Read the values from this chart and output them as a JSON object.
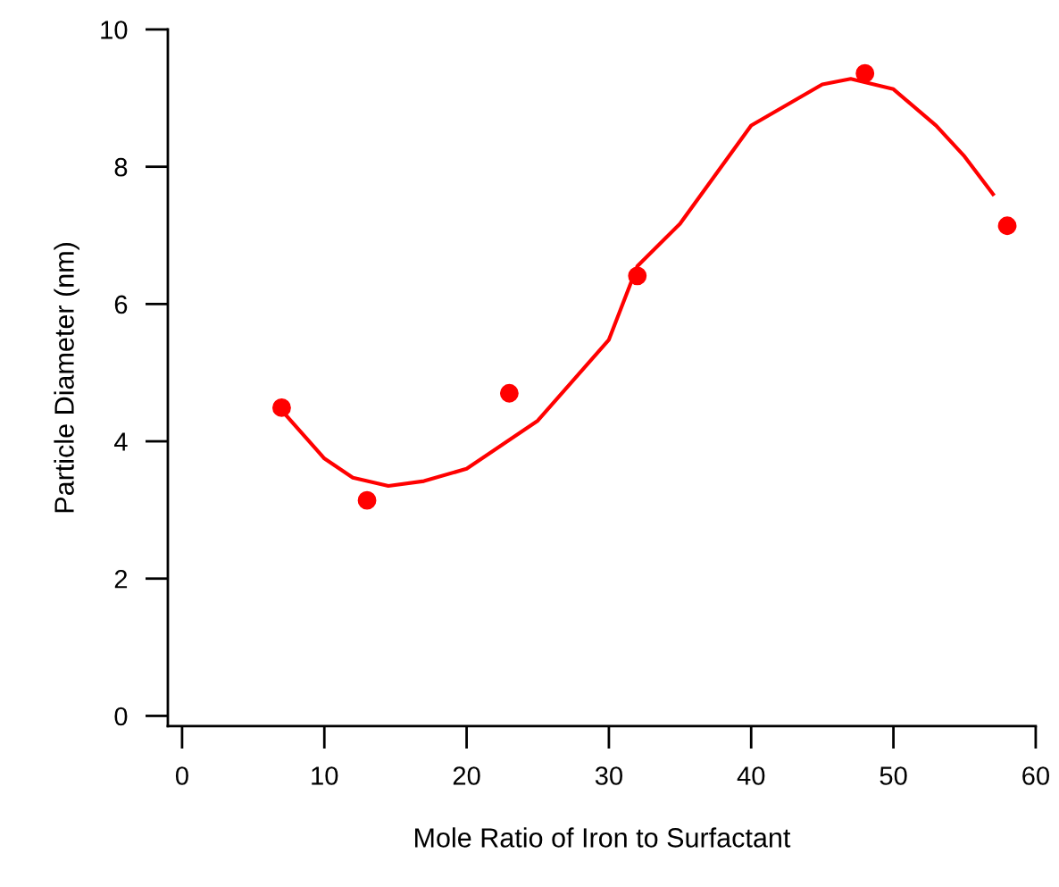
{
  "chart_data": {
    "type": "scatter",
    "xlabel": "Mole Ratio of Iron to Surfactant",
    "ylabel": "Particle Diameter (nm)",
    "xlim": [
      -1,
      60
    ],
    "ylim": [
      -0.15,
      10
    ],
    "xticks": [
      0,
      10,
      20,
      30,
      40,
      50,
      60
    ],
    "yticks": [
      0,
      2,
      4,
      6,
      8,
      10
    ],
    "grid": false,
    "legend": false,
    "marker": "circle",
    "series": [
      {
        "color": "#ff0000",
        "x": [
          7,
          13,
          23,
          32,
          48,
          58
        ],
        "values": [
          4.49,
          3.14,
          4.7,
          6.41,
          9.36,
          7.14
        ]
      },
      {
        "type": "line",
        "color": "#ff0000",
        "marker": "none",
        "line_style": "solid",
        "x": [
          7,
          10,
          12,
          14.5,
          17,
          20,
          25,
          30,
          32,
          35,
          40,
          45,
          47,
          50,
          53,
          55,
          57
        ],
        "values": [
          4.45,
          3.75,
          3.47,
          3.35,
          3.42,
          3.6,
          4.3,
          5.48,
          6.55,
          7.17,
          8.6,
          9.2,
          9.28,
          9.13,
          8.6,
          8.15,
          7.6
        ]
      }
    ]
  }
}
